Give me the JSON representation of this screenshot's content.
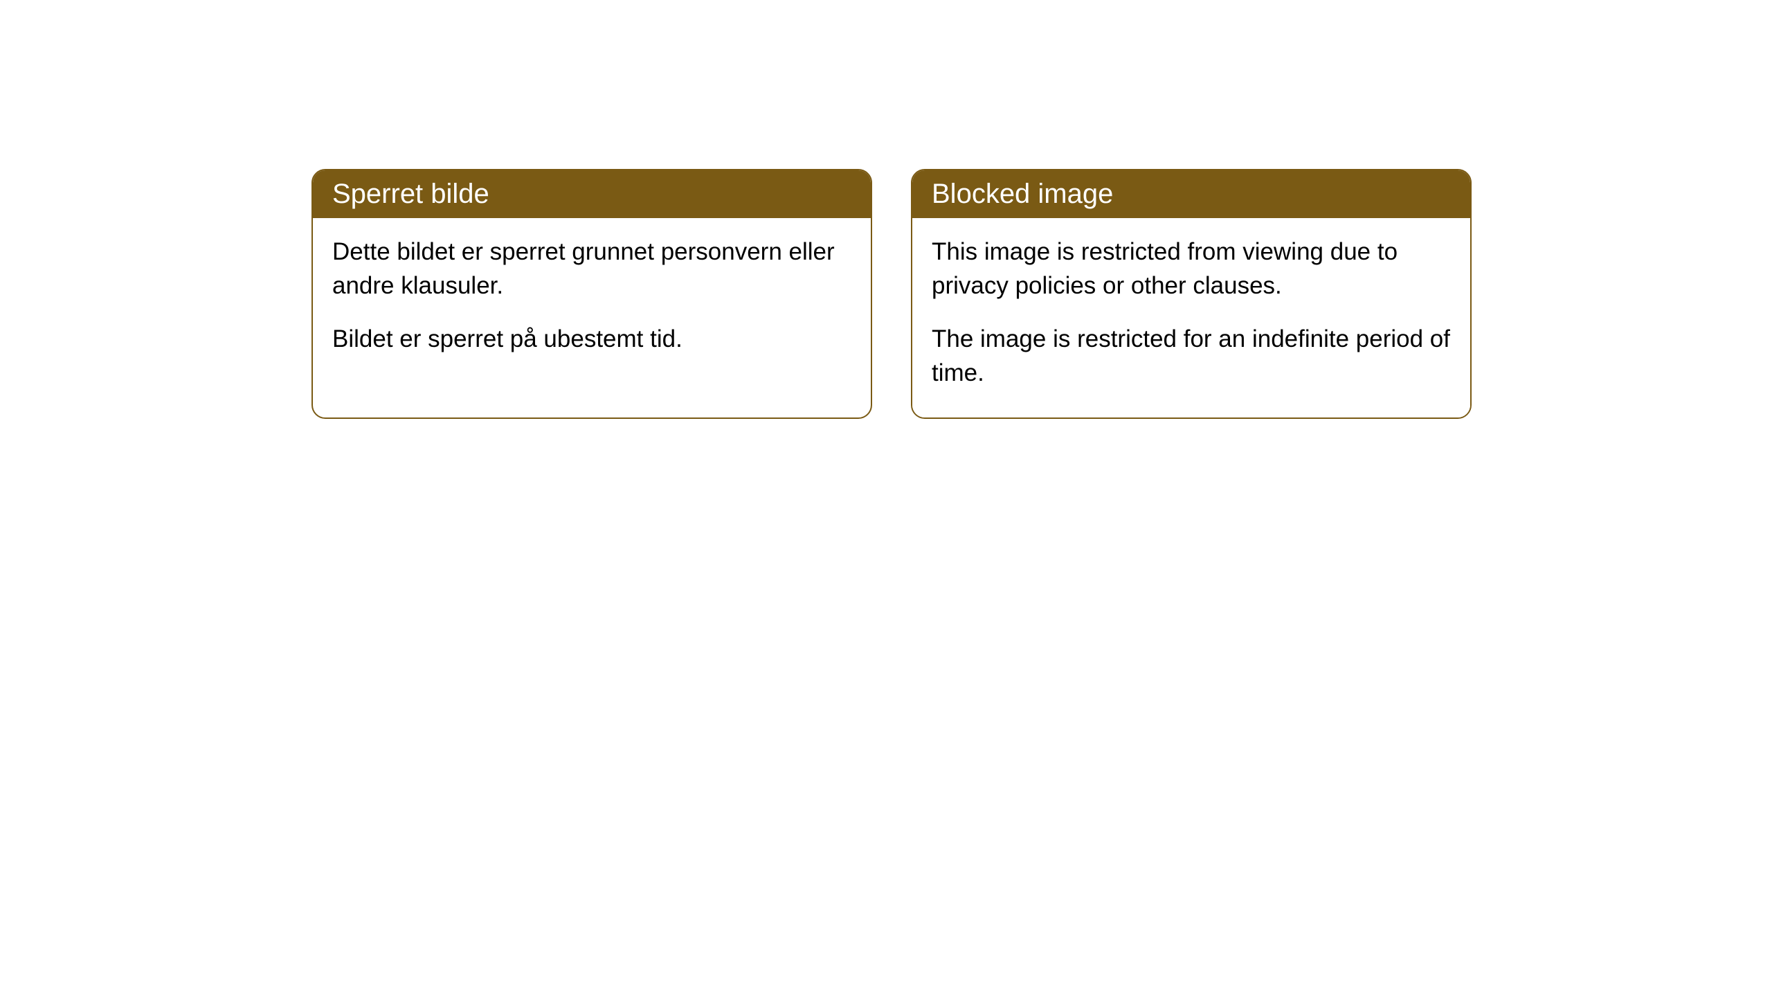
{
  "cards": [
    {
      "title": "Sperret bilde",
      "paragraph1": "Dette bildet er sperret grunnet personvern eller andre klausuler.",
      "paragraph2": "Bildet er sperret på ubestemt tid."
    },
    {
      "title": "Blocked image",
      "paragraph1": "This image is restricted from viewing due to privacy policies or other clauses.",
      "paragraph2": "The image is restricted for an indefinite period of time."
    }
  ],
  "style": {
    "header_bg_color": "#7a5a14",
    "header_text_color": "#ffffff",
    "border_color": "#7a5a14",
    "body_bg_color": "#ffffff",
    "body_text_color": "#000000",
    "border_radius": 20,
    "title_fontsize": 40,
    "body_fontsize": 35
  }
}
